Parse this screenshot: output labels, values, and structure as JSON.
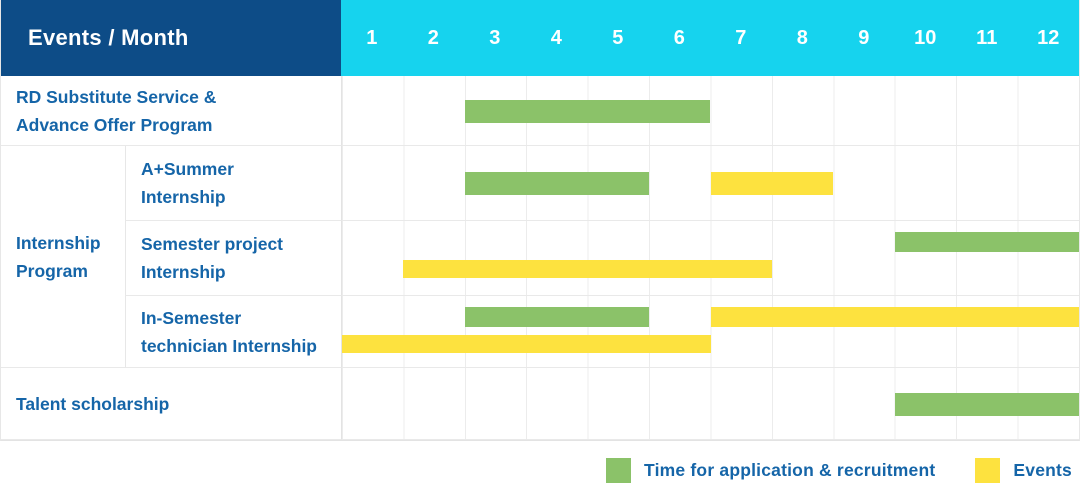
{
  "colors": {
    "navy": "#0d4c87",
    "cyan": "#16d3ee",
    "green": "#8bc269",
    "yellow": "#fde23f",
    "label_blue": "#1565a8",
    "grid_line": "#e9e9e9"
  },
  "header": {
    "title": "Events / Month",
    "months": [
      "1",
      "2",
      "3",
      "4",
      "5",
      "6",
      "7",
      "8",
      "9",
      "10",
      "11",
      "12"
    ]
  },
  "labels": {
    "row1": [
      "RD Substitute Service &",
      "Advance Offer Program"
    ],
    "group": [
      "Internship",
      "Program"
    ],
    "row2": [
      "A+Summer",
      "Internship"
    ],
    "row3": [
      "Semester project",
      "Internship"
    ],
    "row4": [
      "In-Semester",
      "technician Internship"
    ],
    "row5": [
      "Talent scholarship"
    ]
  },
  "legend": {
    "green_label": "Time for application & recruitment",
    "yellow_label": "Events"
  },
  "chart_data": {
    "type": "bar",
    "subtype": "gantt-timeline",
    "title": "Events / Month",
    "x_axis": {
      "label": "Month",
      "ticks": [
        1,
        2,
        3,
        4,
        5,
        6,
        7,
        8,
        9,
        10,
        11,
        12
      ],
      "range": [
        1,
        12
      ]
    },
    "legend_entries": [
      "Time for application & recruitment",
      "Events"
    ],
    "legend_position": "bottom-right",
    "grid": "vertical-month-lines",
    "rows": [
      {
        "group": "",
        "label": "RD Substitute Service & Advance Offer Program",
        "bars": [
          {
            "series": "Time for application & recruitment",
            "series_key": "recruitment",
            "color": "#8bc269",
            "start_month": 3,
            "end_month": 6,
            "lane": "center"
          }
        ]
      },
      {
        "group": "Internship Program",
        "label": "A+Summer Internship",
        "bars": [
          {
            "series": "Time for application & recruitment",
            "series_key": "recruitment",
            "color": "#8bc269",
            "start_month": 3,
            "end_month": 5,
            "lane": "center"
          },
          {
            "series": "Events",
            "series_key": "events",
            "color": "#fde23f",
            "start_month": 7,
            "end_month": 8,
            "lane": "center"
          }
        ]
      },
      {
        "group": "Internship Program",
        "label": "Semester project Internship",
        "bars": [
          {
            "series": "Time for application & recruitment",
            "series_key": "recruitment",
            "color": "#8bc269",
            "start_month": 10,
            "end_month": 12,
            "lane": "top"
          },
          {
            "series": "Events",
            "series_key": "events",
            "color": "#fde23f",
            "start_month": 2,
            "end_month": 7,
            "lane": "bottom"
          }
        ]
      },
      {
        "group": "Internship Program",
        "label": "In-Semester technician Internship",
        "bars": [
          {
            "series": "Time for application & recruitment",
            "series_key": "recruitment",
            "color": "#8bc269",
            "start_month": 3,
            "end_month": 5,
            "lane": "top"
          },
          {
            "series": "Events",
            "series_key": "events",
            "color": "#fde23f",
            "start_month": 7,
            "end_month": 12,
            "lane": "top"
          },
          {
            "series": "Events",
            "series_key": "events",
            "color": "#fde23f",
            "start_month": 1,
            "end_month": 6,
            "lane": "bottom"
          }
        ]
      },
      {
        "group": "",
        "label": "Talent scholarship",
        "bars": [
          {
            "series": "Time for application & recruitment",
            "series_key": "recruitment",
            "color": "#8bc269",
            "start_month": 10,
            "end_month": 12,
            "lane": "center"
          }
        ]
      }
    ]
  }
}
